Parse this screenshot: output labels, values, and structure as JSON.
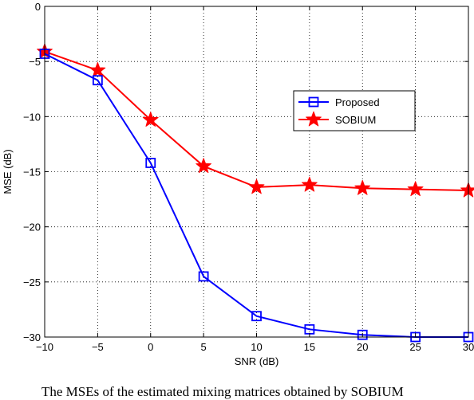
{
  "chart_data": {
    "type": "line",
    "title": "",
    "xlabel": "SNR (dB)",
    "ylabel": "MSE (dB)",
    "xlim": [
      -10,
      30
    ],
    "ylim": [
      -30,
      0
    ],
    "xticks": [
      -10,
      -5,
      0,
      5,
      10,
      15,
      20,
      25,
      30
    ],
    "yticks": [
      0,
      -5,
      -10,
      -15,
      -20,
      -25,
      -30
    ],
    "x": [
      -10,
      -5,
      0,
      5,
      10,
      15,
      20,
      25,
      30
    ],
    "grid": true,
    "legend_position": "center-right",
    "series": [
      {
        "name": "Proposed",
        "values": [
          -4.3,
          -6.7,
          -14.2,
          -24.5,
          -28.1,
          -29.3,
          -29.8,
          -30.0,
          -30.0
        ],
        "color": "#0000ff",
        "marker": "square"
      },
      {
        "name": "SOBIUM",
        "values": [
          -4.1,
          -5.8,
          -10.3,
          -14.5,
          -16.4,
          -16.2,
          -16.5,
          -16.6,
          -16.7
        ],
        "color": "#ff0000",
        "marker": "star"
      }
    ]
  },
  "caption": "The MSEs of the estimated mixing matrices obtained by SOBIUM"
}
